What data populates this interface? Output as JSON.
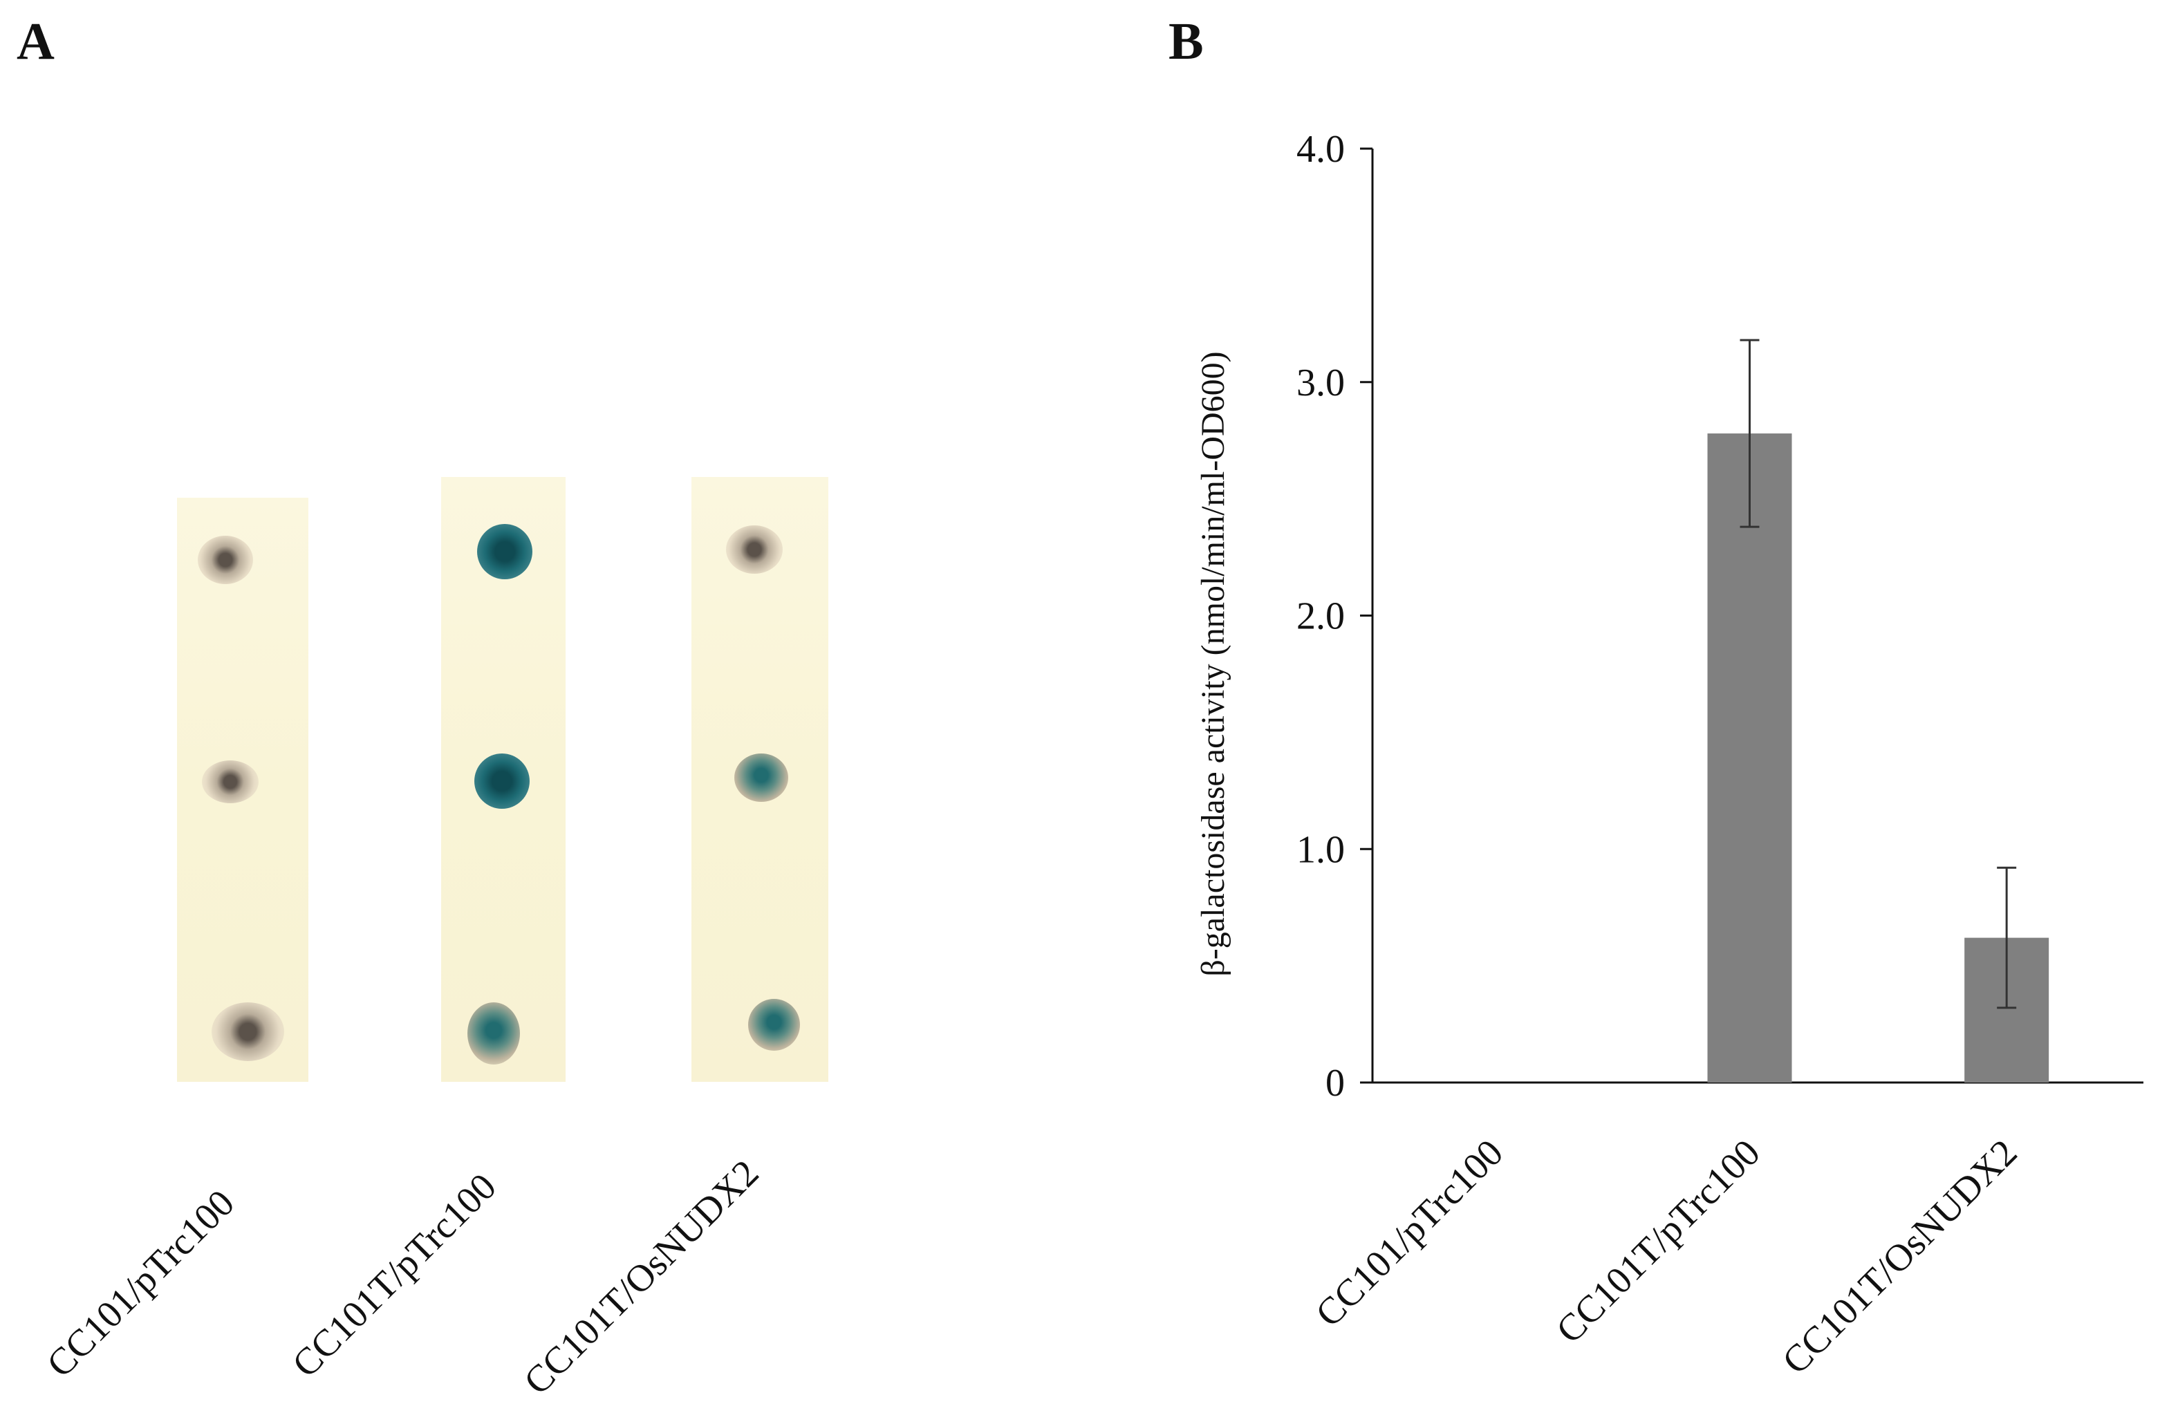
{
  "panels": {
    "a_label": "A",
    "b_label": "B"
  },
  "panel_a": {
    "strips": [
      {
        "label": "CC101/pTrc100",
        "spots": [
          "beige",
          "beige",
          "beige"
        ]
      },
      {
        "label": "CC101T/pTrc100",
        "spots": [
          "blue",
          "blue",
          "mix"
        ]
      },
      {
        "label": "CC101T/OsNUDX2",
        "spots": [
          "beige",
          "mix",
          "mix"
        ]
      }
    ]
  },
  "chart_data": {
    "type": "bar",
    "title": "",
    "xlabel": "",
    "ylabel": "β-galactosidase activity (nmol/min/ml-OD600)",
    "categories": [
      "CC101/pTrc100",
      "CC101T/pTrc100",
      "CC101T/OsNUDX2"
    ],
    "values": [
      0,
      2.78,
      0.62
    ],
    "errors": [
      0,
      0.4,
      0.3
    ],
    "ylim": [
      0,
      4.0
    ],
    "yticks": [
      {
        "value": 0,
        "label": "0"
      },
      {
        "value": 1.0,
        "label": "1.0"
      },
      {
        "value": 2.0,
        "label": "2.0"
      },
      {
        "value": 3.0,
        "label": "3.0"
      },
      {
        "value": 4.0,
        "label": "4.0"
      }
    ],
    "bar_color": "#808080",
    "grid": false
  }
}
